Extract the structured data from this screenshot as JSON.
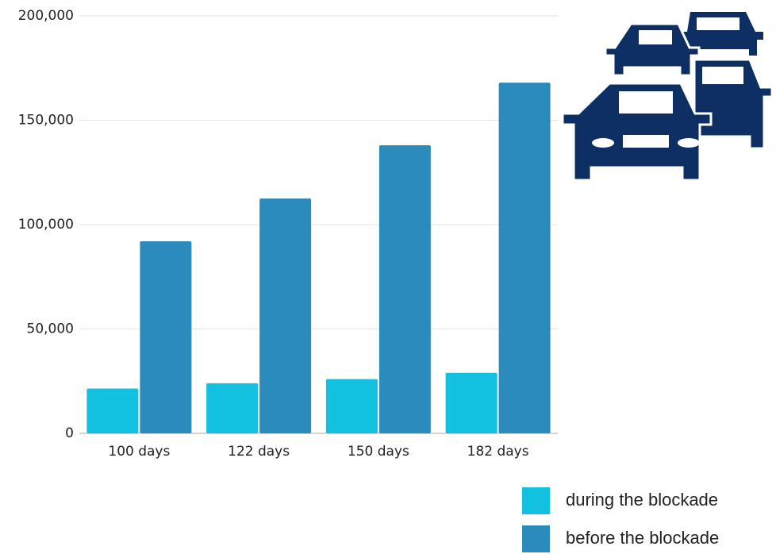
{
  "chart_data": {
    "type": "bar",
    "categories": [
      "100 days",
      "122 days",
      "150 days",
      "182 days"
    ],
    "series": [
      {
        "name": "during the blockade",
        "color": "#12c1e0",
        "values": [
          21500,
          24000,
          26000,
          29000
        ]
      },
      {
        "name": "before the blockade",
        "color": "#2b8cbb",
        "values": [
          92000,
          112500,
          138000,
          168000
        ]
      }
    ],
    "ylim": [
      0,
      200000
    ],
    "yticks": [
      0,
      {
        "value": 50000,
        "label": "50,000"
      },
      {
        "value": 100000,
        "label": "100,000"
      },
      {
        "value": 150000,
        "label": "150,000"
      },
      {
        "value": 200000,
        "label": "200,000"
      }
    ],
    "grid": true
  }
}
